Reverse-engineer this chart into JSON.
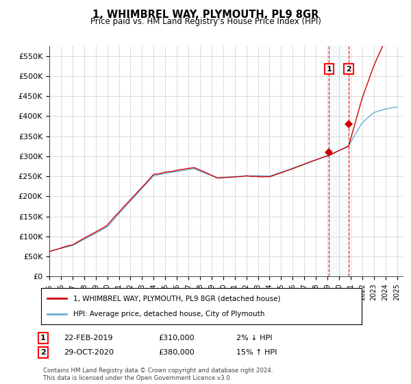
{
  "title": "1, WHIMBREL WAY, PLYMOUTH, PL9 8GR",
  "subtitle": "Price paid vs. HM Land Registry's House Price Index (HPI)",
  "ylabel_ticks": [
    "£0",
    "£50K",
    "£100K",
    "£150K",
    "£200K",
    "£250K",
    "£300K",
    "£350K",
    "£400K",
    "£450K",
    "£500K",
    "£550K"
  ],
  "ytick_values": [
    0,
    50000,
    100000,
    150000,
    200000,
    250000,
    300000,
    350000,
    400000,
    450000,
    500000,
    550000
  ],
  "ylim": [
    0,
    575000
  ],
  "xlim_start": 1995.0,
  "xlim_end": 2025.5,
  "hpi_color": "#6baed6",
  "price_color": "#CC0000",
  "sale1_date": "22-FEB-2019",
  "sale1_price": 310000,
  "sale1_pct": "2% ↓ HPI",
  "sale1_year": 2019.13,
  "sale2_date": "29-OCT-2020",
  "sale2_price": 380000,
  "sale2_pct": "15% ↑ HPI",
  "sale2_year": 2020.83,
  "legend_line1": "1, WHIMBREL WAY, PLYMOUTH, PL9 8GR (detached house)",
  "legend_line2": "HPI: Average price, detached house, City of Plymouth",
  "footnote": "Contains HM Land Registry data © Crown copyright and database right 2024.\nThis data is licensed under the Open Government Licence v3.0.",
  "background_color": "#ffffff",
  "grid_color": "#cccccc"
}
